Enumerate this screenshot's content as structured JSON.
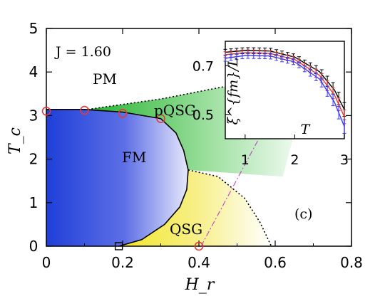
{
  "chart_data": [
    {
      "type": "line",
      "title": "",
      "annotation": "J = 1.60",
      "panel_label": "(c)",
      "xlabel": "H_r",
      "ylabel": "T_c",
      "xlim": [
        0,
        0.8
      ],
      "ylim": [
        0,
        5
      ],
      "x_ticks": [
        "0",
        "0.2",
        "0.4",
        "0.6",
        "0.8"
      ],
      "y_ticks": [
        "0",
        "1",
        "2",
        "3",
        "4",
        "5"
      ],
      "region_labels": [
        "PM",
        "FM",
        "pQSG",
        "QSG"
      ],
      "phase_points": [
        {
          "x": 0.0,
          "y": 3.1
        },
        {
          "x": 0.1,
          "y": 3.12
        },
        {
          "x": 0.2,
          "y": 3.05
        },
        {
          "x": 0.3,
          "y": 2.93
        },
        {
          "x": 0.4,
          "y": 0.0
        }
      ],
      "square_point": {
        "x": 0.19,
        "y": 0.0
      },
      "fm_boundary": [
        {
          "x": 0.0,
          "y": 3.14
        },
        {
          "x": 0.1,
          "y": 3.14
        },
        {
          "x": 0.2,
          "y": 3.08
        },
        {
          "x": 0.3,
          "y": 2.93
        },
        {
          "x": 0.34,
          "y": 2.6
        },
        {
          "x": 0.36,
          "y": 2.2
        },
        {
          "x": 0.372,
          "y": 1.75
        },
        {
          "x": 0.368,
          "y": 1.3
        },
        {
          "x": 0.35,
          "y": 0.9
        },
        {
          "x": 0.31,
          "y": 0.5
        },
        {
          "x": 0.25,
          "y": 0.15
        },
        {
          "x": 0.19,
          "y": 0.0
        }
      ],
      "pqsg_boundary_dotted": [
        {
          "x": 0.1,
          "y": 3.13
        },
        {
          "x": 0.3,
          "y": 3.38
        },
        {
          "x": 0.5,
          "y": 3.72
        },
        {
          "x": 0.7,
          "y": 4.25
        }
      ],
      "qsg_boundary_dotted": [
        {
          "x": 0.372,
          "y": 1.75
        },
        {
          "x": 0.45,
          "y": 1.6
        },
        {
          "x": 0.52,
          "y": 1.1
        },
        {
          "x": 0.56,
          "y": 0.55
        },
        {
          "x": 0.59,
          "y": 0.0
        }
      ],
      "colors": {
        "fm": "#1f3fd8",
        "pqsg": "#22b22e",
        "qsg": "#f2e626",
        "markers": "#e03a3a",
        "arrow": "#c040c8"
      }
    },
    {
      "type": "line",
      "title": "",
      "xlabel": "T",
      "ylabel": "ξ^{fm}/L",
      "xlim": [
        0.6,
        3.0
      ],
      "ylim": [
        0.4,
        0.8
      ],
      "x_ticks": [
        "1",
        "2",
        "3"
      ],
      "y_ticks": [
        "0.5",
        "0.7"
      ],
      "series": [
        {
          "color": "#000000",
          "x": [
            0.6,
            1.0,
            1.5,
            2.0,
            2.5,
            2.8,
            3.0
          ],
          "y": [
            0.755,
            0.762,
            0.76,
            0.735,
            0.675,
            0.6,
            0.52
          ]
        },
        {
          "color": "#e03a3a",
          "x": [
            0.6,
            1.0,
            1.5,
            2.0,
            2.5,
            2.8,
            3.0
          ],
          "y": [
            0.745,
            0.753,
            0.75,
            0.725,
            0.66,
            0.58,
            0.49
          ]
        },
        {
          "color": "#3a3aff",
          "x": [
            0.6,
            1.0,
            1.5,
            2.0,
            2.5,
            2.8,
            3.0
          ],
          "y": [
            0.73,
            0.742,
            0.74,
            0.715,
            0.645,
            0.55,
            0.45
          ]
        }
      ]
    }
  ]
}
